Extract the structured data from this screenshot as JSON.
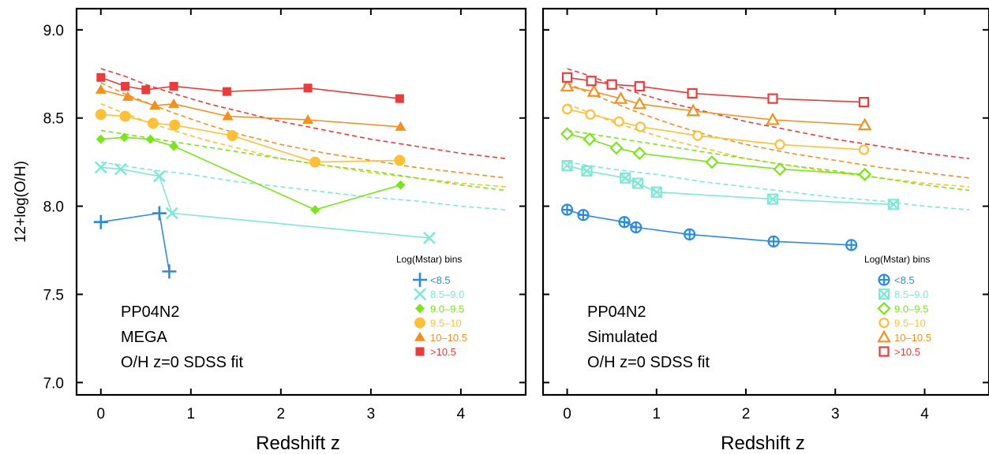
{
  "chart_data": [
    {
      "type": "line",
      "panel": "left",
      "xlabel": "Redshift z",
      "ylabel": "12+log(O/H)",
      "xlim": [
        -0.27,
        4.72
      ],
      "ylim": [
        6.93,
        9.12
      ],
      "xticks": [
        0,
        1,
        2,
        3,
        4
      ],
      "yticks": [
        7.0,
        7.5,
        8.0,
        8.5,
        9.0
      ],
      "xtick_labels": [
        "0",
        "1",
        "2",
        "3",
        "4"
      ],
      "ytick_labels": [
        "7.0",
        "7.5",
        "8.0",
        "8.5",
        "9.0"
      ],
      "grid": false,
      "legend_position": "right",
      "legend_title": "Log(Mstar) bins",
      "annotation_lines": [
        "PP04N2",
        "MEGA",
        "O/H z=0 SDSS fit"
      ],
      "series": [
        {
          "name": "<8.5",
          "color": "#2b8be3",
          "marker": "plus",
          "points": [
            [
              0.0,
              7.91
            ],
            [
              0.65,
              7.96
            ],
            [
              0.76,
              7.63
            ]
          ]
        },
        {
          "name": "8.5–9.0",
          "color": "#7fe8d6",
          "marker": "x",
          "points": [
            [
              0.0,
              8.22
            ],
            [
              0.22,
              8.21
            ],
            [
              0.65,
              8.17
            ],
            [
              0.79,
              7.96
            ],
            [
              3.65,
              7.82
            ]
          ]
        },
        {
          "name": "9.0–9.5",
          "color": "#79e619",
          "marker": "diamond-filled",
          "points": [
            [
              0.0,
              8.38
            ],
            [
              0.26,
              8.39
            ],
            [
              0.55,
              8.38
            ],
            [
              0.81,
              8.34
            ],
            [
              2.38,
              7.98
            ],
            [
              3.33,
              8.12
            ]
          ]
        },
        {
          "name": "9.5–10",
          "color": "#ffbf36",
          "marker": "circle-filled",
          "points": [
            [
              0.0,
              8.52
            ],
            [
              0.27,
              8.51
            ],
            [
              0.58,
              8.47
            ],
            [
              0.82,
              8.46
            ],
            [
              1.46,
              8.4
            ],
            [
              2.38,
              8.25
            ],
            [
              3.32,
              8.26
            ]
          ]
        },
        {
          "name": "10–10.5",
          "color": "#f5901e",
          "marker": "triangle-filled",
          "points": [
            [
              0.0,
              8.66
            ],
            [
              0.3,
              8.62
            ],
            [
              0.6,
              8.57
            ],
            [
              0.81,
              8.58
            ],
            [
              1.41,
              8.51
            ],
            [
              2.3,
              8.49
            ],
            [
              3.33,
              8.45
            ]
          ]
        },
        {
          "name": ">10.5",
          "color": "#ec3b39",
          "marker": "square-filled",
          "points": [
            [
              0.0,
              8.73
            ],
            [
              0.27,
              8.68
            ],
            [
              0.5,
              8.66
            ],
            [
              0.81,
              8.68
            ],
            [
              1.4,
              8.65
            ],
            [
              2.3,
              8.67
            ],
            [
              3.32,
              8.61
            ]
          ]
        }
      ],
      "reference_fits": [
        {
          "color": "#ec3b39",
          "points": [
            [
              0.0,
              8.78
            ],
            [
              0.25,
              8.74
            ],
            [
              0.5,
              8.69
            ],
            [
              0.8,
              8.64
            ],
            [
              1.2,
              8.58
            ],
            [
              1.6,
              8.53
            ],
            [
              2.0,
              8.48
            ],
            [
              2.5,
              8.43
            ],
            [
              3.0,
              8.38
            ],
            [
              3.5,
              8.34
            ],
            [
              4.0,
              8.3
            ],
            [
              4.5,
              8.27
            ]
          ]
        },
        {
          "color": "#f5901e",
          "points": [
            [
              0.0,
              8.7
            ],
            [
              0.25,
              8.64
            ],
            [
              0.5,
              8.59
            ],
            [
              0.8,
              8.53
            ],
            [
              1.2,
              8.46
            ],
            [
              1.6,
              8.4
            ],
            [
              2.0,
              8.35
            ],
            [
              2.5,
              8.3
            ],
            [
              3.0,
              8.26
            ],
            [
              3.5,
              8.22
            ],
            [
              4.0,
              8.19
            ],
            [
              4.5,
              8.16
            ]
          ]
        },
        {
          "color": "#ffbf36",
          "points": [
            [
              0.0,
              8.58
            ],
            [
              0.25,
              8.53
            ],
            [
              0.5,
              8.48
            ],
            [
              0.8,
              8.43
            ],
            [
              1.2,
              8.37
            ],
            [
              1.6,
              8.32
            ],
            [
              2.0,
              8.27
            ],
            [
              2.5,
              8.23
            ],
            [
              3.0,
              8.19
            ],
            [
              3.5,
              8.16
            ],
            [
              4.0,
              8.13
            ],
            [
              4.5,
              8.11
            ]
          ]
        },
        {
          "color": "#79e619",
          "points": [
            [
              0.0,
              8.43
            ],
            [
              0.5,
              8.39
            ],
            [
              1.0,
              8.35
            ],
            [
              1.5,
              8.31
            ],
            [
              2.0,
              8.27
            ],
            [
              2.5,
              8.23
            ],
            [
              3.0,
              8.2
            ],
            [
              3.5,
              8.16
            ],
            [
              4.0,
              8.12
            ],
            [
              4.5,
              8.09
            ]
          ]
        },
        {
          "color": "#7fe8d6",
          "points": [
            [
              0.0,
              8.25
            ],
            [
              0.5,
              8.21
            ],
            [
              1.0,
              8.18
            ],
            [
              1.5,
              8.14
            ],
            [
              2.0,
              8.11
            ],
            [
              2.5,
              8.08
            ],
            [
              3.0,
              8.05
            ],
            [
              3.5,
              8.03
            ],
            [
              4.0,
              8.0
            ],
            [
              4.5,
              7.98
            ]
          ]
        }
      ]
    },
    {
      "type": "line",
      "panel": "right",
      "xlabel": "Redshift z",
      "ylabel": "",
      "xlim": [
        -0.27,
        4.72
      ],
      "ylim": [
        6.93,
        9.12
      ],
      "xticks": [
        0,
        1,
        2,
        3,
        4
      ],
      "yticks": [
        7.0,
        7.5,
        8.0,
        8.5,
        9.0
      ],
      "xtick_labels": [
        "0",
        "1",
        "2",
        "3",
        "4"
      ],
      "ytick_labels": [],
      "grid": false,
      "legend_position": "right",
      "legend_title": "Log(Mstar) bins",
      "annotation_lines": [
        "PP04N2",
        "Simulated",
        "O/H z=0 SDSS fit"
      ],
      "series": [
        {
          "name": "<8.5",
          "color": "#2b8be3",
          "marker": "circle-plus",
          "points": [
            [
              0.0,
              7.98
            ],
            [
              0.18,
              7.95
            ],
            [
              0.64,
              7.91
            ],
            [
              0.77,
              7.88
            ],
            [
              1.37,
              7.84
            ],
            [
              2.31,
              7.8
            ],
            [
              3.18,
              7.78
            ]
          ]
        },
        {
          "name": "8.5–9.0",
          "color": "#7fe8d6",
          "marker": "square-x",
          "points": [
            [
              0.0,
              8.23
            ],
            [
              0.22,
              8.2
            ],
            [
              0.65,
              8.16
            ],
            [
              0.79,
              8.13
            ],
            [
              1.0,
              8.08
            ],
            [
              2.3,
              8.04
            ],
            [
              3.65,
              8.01
            ]
          ]
        },
        {
          "name": "9.0–9.5",
          "color": "#79e619",
          "marker": "diamond-open",
          "points": [
            [
              0.0,
              8.41
            ],
            [
              0.25,
              8.38
            ],
            [
              0.55,
              8.33
            ],
            [
              0.81,
              8.3
            ],
            [
              1.62,
              8.25
            ],
            [
              2.38,
              8.21
            ],
            [
              3.33,
              8.18
            ]
          ]
        },
        {
          "name": "9.5–10",
          "color": "#ffbf36",
          "marker": "circle-open",
          "points": [
            [
              0.0,
              8.55
            ],
            [
              0.26,
              8.52
            ],
            [
              0.58,
              8.48
            ],
            [
              0.82,
              8.45
            ],
            [
              1.46,
              8.4
            ],
            [
              2.38,
              8.35
            ],
            [
              3.32,
              8.32
            ]
          ]
        },
        {
          "name": "10–10.5",
          "color": "#f5901e",
          "marker": "triangle-open",
          "points": [
            [
              0.0,
              8.68
            ],
            [
              0.3,
              8.65
            ],
            [
              0.6,
              8.61
            ],
            [
              0.81,
              8.58
            ],
            [
              1.41,
              8.54
            ],
            [
              2.3,
              8.49
            ],
            [
              3.33,
              8.46
            ]
          ]
        },
        {
          "name": ">10.5",
          "color": "#ec3b39",
          "marker": "square-open",
          "points": [
            [
              0.0,
              8.73
            ],
            [
              0.27,
              8.71
            ],
            [
              0.5,
              8.69
            ],
            [
              0.81,
              8.68
            ],
            [
              1.4,
              8.64
            ],
            [
              2.3,
              8.61
            ],
            [
              3.32,
              8.59
            ]
          ]
        }
      ],
      "reference_fits": [
        {
          "color": "#ec3b39",
          "points": [
            [
              0.0,
              8.78
            ],
            [
              0.25,
              8.74
            ],
            [
              0.5,
              8.69
            ],
            [
              0.8,
              8.64
            ],
            [
              1.2,
              8.58
            ],
            [
              1.6,
              8.53
            ],
            [
              2.0,
              8.48
            ],
            [
              2.5,
              8.43
            ],
            [
              3.0,
              8.38
            ],
            [
              3.5,
              8.34
            ],
            [
              4.0,
              8.3
            ],
            [
              4.5,
              8.27
            ]
          ]
        },
        {
          "color": "#f5901e",
          "points": [
            [
              0.0,
              8.7
            ],
            [
              0.25,
              8.64
            ],
            [
              0.5,
              8.59
            ],
            [
              0.8,
              8.53
            ],
            [
              1.2,
              8.46
            ],
            [
              1.6,
              8.4
            ],
            [
              2.0,
              8.35
            ],
            [
              2.5,
              8.3
            ],
            [
              3.0,
              8.26
            ],
            [
              3.5,
              8.22
            ],
            [
              4.0,
              8.19
            ],
            [
              4.5,
              8.16
            ]
          ]
        },
        {
          "color": "#ffbf36",
          "points": [
            [
              0.0,
              8.58
            ],
            [
              0.25,
              8.53
            ],
            [
              0.5,
              8.48
            ],
            [
              0.8,
              8.43
            ],
            [
              1.2,
              8.37
            ],
            [
              1.6,
              8.32
            ],
            [
              2.0,
              8.27
            ],
            [
              2.5,
              8.23
            ],
            [
              3.0,
              8.19
            ],
            [
              3.5,
              8.16
            ],
            [
              4.0,
              8.13
            ],
            [
              4.5,
              8.11
            ]
          ]
        },
        {
          "color": "#79e619",
          "points": [
            [
              0.0,
              8.43
            ],
            [
              0.5,
              8.39
            ],
            [
              1.0,
              8.35
            ],
            [
              1.5,
              8.31
            ],
            [
              2.0,
              8.27
            ],
            [
              2.5,
              8.23
            ],
            [
              3.0,
              8.2
            ],
            [
              3.5,
              8.16
            ],
            [
              4.0,
              8.12
            ],
            [
              4.5,
              8.09
            ]
          ]
        },
        {
          "color": "#7fe8d6",
          "points": [
            [
              0.0,
              8.25
            ],
            [
              0.5,
              8.21
            ],
            [
              1.0,
              8.18
            ],
            [
              1.5,
              8.14
            ],
            [
              2.0,
              8.11
            ],
            [
              2.5,
              8.08
            ],
            [
              3.0,
              8.05
            ],
            [
              3.5,
              8.03
            ],
            [
              4.0,
              8.0
            ],
            [
              4.5,
              7.98
            ]
          ]
        }
      ]
    }
  ]
}
